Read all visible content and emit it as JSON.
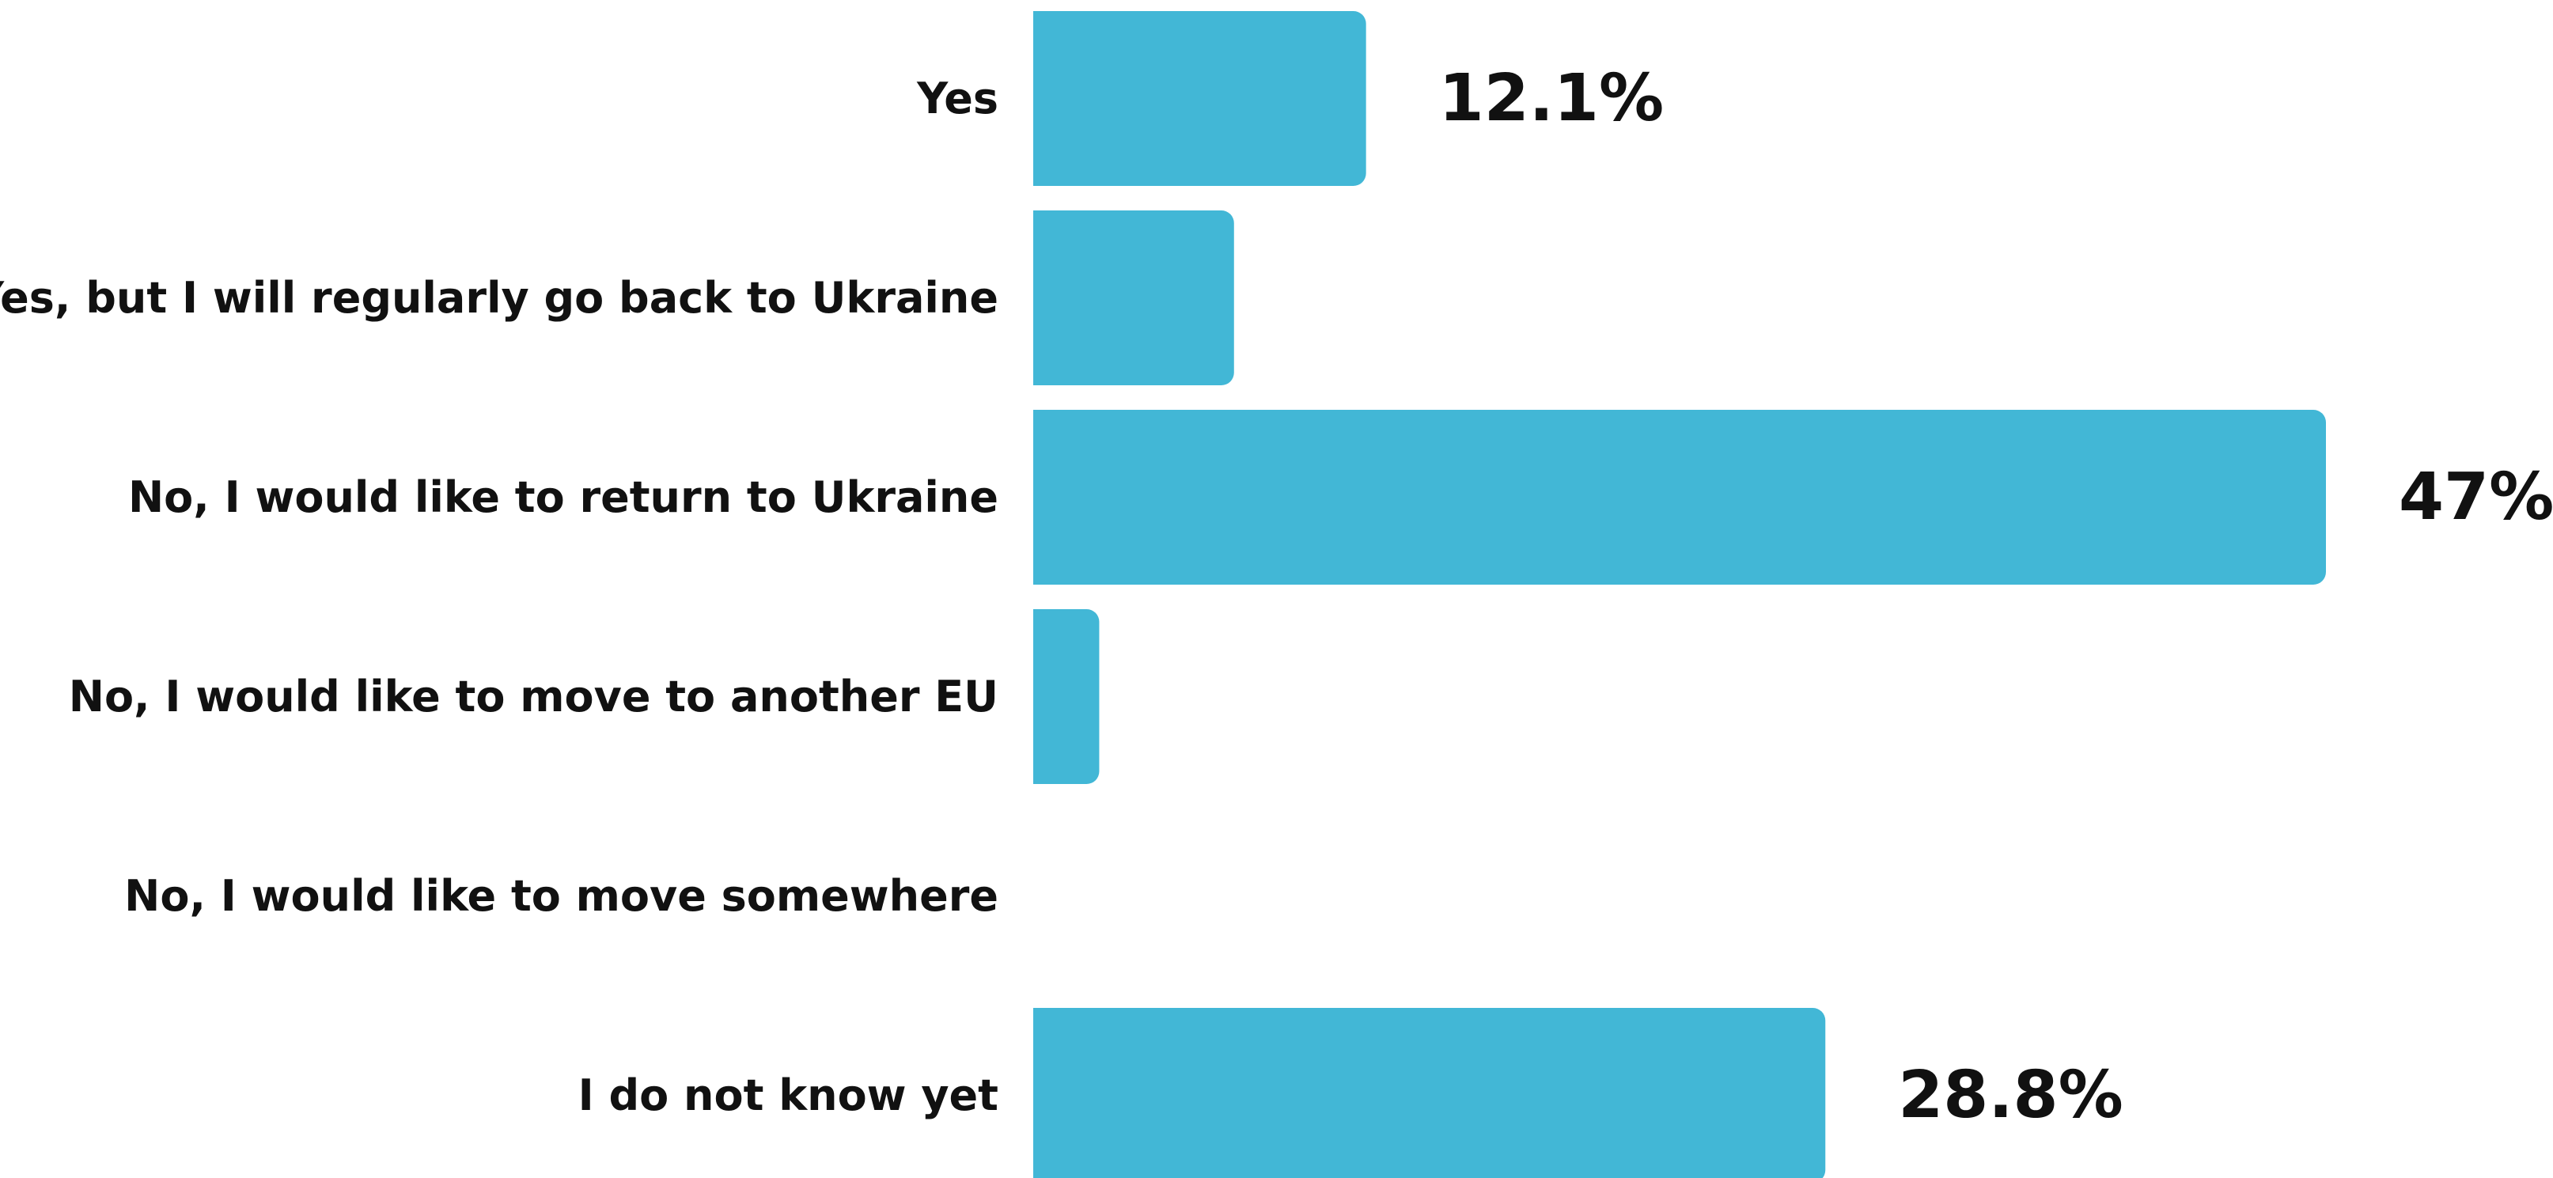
{
  "chart_data": {
    "type": "bar",
    "orientation": "horizontal",
    "categories": [
      "Yes",
      "Yes, but I will regularly go back to Ukraine",
      "No, I would like to return to Ukraine",
      "No, I would like to move to another EU",
      "No, I would like to move somewhere",
      "I do not know yet"
    ],
    "values": [
      12.1,
      7.3,
      47,
      2.4,
      0,
      28.8
    ],
    "value_labels": [
      "12.1%",
      "",
      "47%",
      "",
      "",
      "28.8%"
    ],
    "unit": "%",
    "xlim": [
      0,
      47
    ],
    "bar_color": "#42b7d6",
    "grid": false,
    "legend": "none"
  }
}
